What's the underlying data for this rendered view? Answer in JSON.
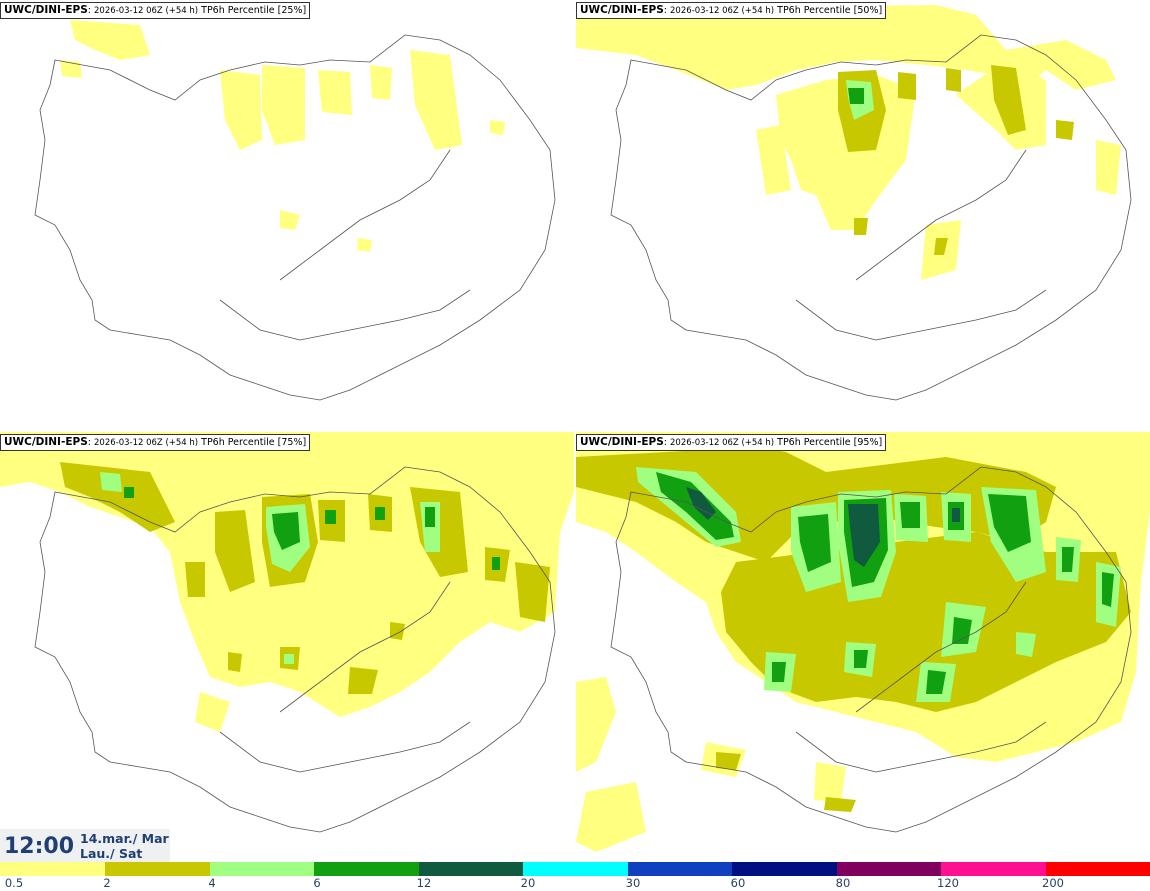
{
  "panels": [
    {
      "model": "UWC/DINI-EPS",
      "run": "2026-03-12 06Z (+54 h)",
      "product": "TP6h Percentile [25%]"
    },
    {
      "model": "UWC/DINI-EPS",
      "run": "2026-03-12 06Z (+54 h)",
      "product": "TP6h Percentile [50%]"
    },
    {
      "model": "UWC/DINI-EPS",
      "run": "2026-03-12 06Z (+54 h)",
      "product": "TP6h Percentile [75%]"
    },
    {
      "model": "UWC/DINI-EPS",
      "run": "2026-03-12 06Z (+54 h)",
      "product": "TP6h Percentile [95%]"
    }
  ],
  "valid_time": {
    "time": "12:00",
    "date_line1": "14.mar./ Mar",
    "date_line2": "Lau./ Sat"
  },
  "legend": {
    "ticks": [
      "0.5",
      "2",
      "4",
      "6",
      "12",
      "20",
      "30",
      "60",
      "80",
      "120",
      "200"
    ],
    "colors": [
      "#ffff80",
      "#c8c800",
      "#a0ff80",
      "#10a010",
      "#105a40",
      "#00ffff",
      "#1040c0",
      "#001080",
      "#800060",
      "#ff1090",
      "#ff0000"
    ]
  }
}
